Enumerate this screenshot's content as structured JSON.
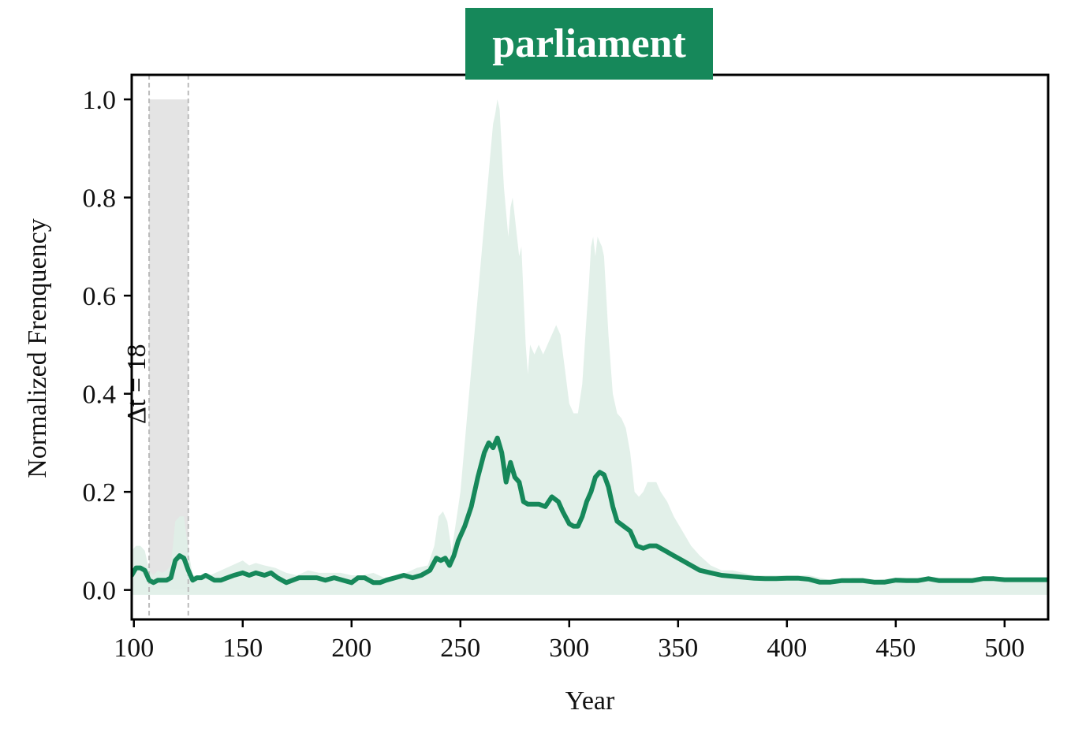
{
  "chart_data": {
    "type": "area",
    "title": "parliament",
    "xlabel": "Year",
    "ylabel": "Normalized Frenquency",
    "xlim": [
      99,
      520
    ],
    "ylim": [
      -0.06,
      1.05
    ],
    "xticks": [
      100,
      150,
      200,
      250,
      300,
      350,
      400,
      450,
      500
    ],
    "yticks": [
      0.0,
      0.2,
      0.4,
      0.6,
      0.8,
      1.0
    ],
    "ytick_labels": [
      "0.0",
      "0.2",
      "0.4",
      "0.6",
      "0.8",
      "1.0"
    ],
    "grid": false,
    "colors": {
      "line": "#16885a",
      "band": "#dfeee7",
      "title_bg": "#16885a",
      "title_text": "#ffffff",
      "highlight": "#e4e4e4",
      "guide": "#bbbbbb"
    },
    "highlight_region": {
      "x_start": 107,
      "x_end": 125,
      "label": "Δt = 18"
    },
    "series": [
      {
        "type": "line",
        "x": [
          99,
          101,
          103,
          105,
          107,
          109,
          111,
          113,
          115,
          117,
          119,
          121,
          123,
          125,
          127,
          129,
          131,
          133,
          135,
          137,
          140,
          143,
          146,
          150,
          153,
          156,
          160,
          163,
          166,
          170,
          173,
          176,
          180,
          184,
          188,
          192,
          196,
          200,
          203,
          206,
          210,
          213,
          216,
          220,
          224,
          228,
          232,
          236,
          239,
          241,
          243,
          245,
          247,
          249,
          252,
          255,
          258,
          261,
          263,
          265,
          267,
          269,
          271,
          273,
          275,
          277,
          279,
          281,
          283,
          286,
          289,
          292,
          295,
          297,
          300,
          302,
          304,
          306,
          308,
          310,
          312,
          314,
          316,
          318,
          320,
          322,
          325,
          328,
          331,
          334,
          337,
          340,
          344,
          348,
          352,
          356,
          360,
          365,
          370,
          375,
          380,
          385,
          390,
          395,
          400,
          405,
          410,
          415,
          420,
          425,
          430,
          435,
          440,
          445,
          450,
          455,
          460,
          465,
          470,
          475,
          480,
          485,
          490,
          495,
          500,
          505,
          510,
          515,
          520
        ],
        "y": [
          0.03,
          0.045,
          0.045,
          0.04,
          0.02,
          0.015,
          0.02,
          0.02,
          0.02,
          0.025,
          0.06,
          0.07,
          0.065,
          0.04,
          0.02,
          0.025,
          0.025,
          0.03,
          0.025,
          0.02,
          0.02,
          0.025,
          0.03,
          0.035,
          0.03,
          0.035,
          0.03,
          0.035,
          0.025,
          0.015,
          0.02,
          0.025,
          0.025,
          0.025,
          0.02,
          0.025,
          0.02,
          0.015,
          0.025,
          0.025,
          0.015,
          0.015,
          0.02,
          0.025,
          0.03,
          0.025,
          0.03,
          0.04,
          0.065,
          0.06,
          0.065,
          0.05,
          0.07,
          0.1,
          0.13,
          0.17,
          0.23,
          0.28,
          0.3,
          0.29,
          0.31,
          0.28,
          0.22,
          0.26,
          0.23,
          0.22,
          0.18,
          0.175,
          0.175,
          0.175,
          0.17,
          0.19,
          0.18,
          0.16,
          0.135,
          0.13,
          0.13,
          0.15,
          0.18,
          0.2,
          0.23,
          0.24,
          0.235,
          0.21,
          0.17,
          0.14,
          0.13,
          0.12,
          0.09,
          0.085,
          0.09,
          0.09,
          0.08,
          0.07,
          0.06,
          0.05,
          0.04,
          0.035,
          0.03,
          0.028,
          0.026,
          0.024,
          0.023,
          0.023,
          0.024,
          0.024,
          0.022,
          0.016,
          0.016,
          0.019,
          0.019,
          0.019,
          0.016,
          0.016,
          0.02,
          0.019,
          0.019,
          0.023,
          0.019,
          0.019,
          0.019,
          0.019,
          0.023,
          0.023,
          0.021,
          0.021,
          0.021,
          0.021,
          0.021
        ]
      },
      {
        "type": "band",
        "x": [
          99,
          101,
          103,
          105,
          107,
          109,
          111,
          113,
          115,
          117,
          119,
          121,
          123,
          125,
          127,
          130,
          135,
          140,
          145,
          150,
          153,
          156,
          160,
          165,
          170,
          175,
          180,
          185,
          190,
          195,
          200,
          205,
          210,
          215,
          220,
          225,
          230,
          235,
          238,
          240,
          242,
          244,
          246,
          248,
          250,
          252,
          254,
          256,
          258,
          260,
          262,
          263,
          264,
          265,
          266,
          267,
          268,
          269,
          270,
          272,
          273,
          274,
          275,
          276,
          277,
          278,
          279,
          280,
          281,
          282,
          284,
          286,
          288,
          290,
          292,
          294,
          296,
          298,
          300,
          302,
          304,
          306,
          308,
          309,
          310,
          311,
          312,
          313,
          314,
          315,
          316,
          317,
          318,
          320,
          322,
          324,
          326,
          328,
          330,
          332,
          334,
          336,
          338,
          340,
          342,
          345,
          348,
          352,
          356,
          360,
          365,
          370,
          375,
          380,
          385,
          390,
          395,
          400,
          405,
          410,
          415,
          420,
          425,
          430,
          435,
          440,
          450,
          460,
          470,
          480,
          490,
          500,
          510,
          520
        ],
        "upper": [
          0.08,
          0.09,
          0.09,
          0.08,
          0.04,
          0.03,
          0.04,
          0.035,
          0.04,
          0.05,
          0.14,
          0.15,
          0.15,
          0.08,
          0.03,
          0.03,
          0.03,
          0.04,
          0.05,
          0.06,
          0.05,
          0.055,
          0.05,
          0.045,
          0.035,
          0.03,
          0.04,
          0.035,
          0.035,
          0.035,
          0.03,
          0.03,
          0.035,
          0.025,
          0.03,
          0.035,
          0.045,
          0.05,
          0.09,
          0.15,
          0.16,
          0.14,
          0.08,
          0.14,
          0.2,
          0.3,
          0.4,
          0.5,
          0.6,
          0.7,
          0.8,
          0.85,
          0.9,
          0.95,
          0.97,
          1.0,
          0.98,
          0.9,
          0.82,
          0.72,
          0.78,
          0.8,
          0.76,
          0.72,
          0.68,
          0.7,
          0.6,
          0.5,
          0.44,
          0.5,
          0.48,
          0.5,
          0.48,
          0.5,
          0.52,
          0.54,
          0.52,
          0.45,
          0.38,
          0.36,
          0.36,
          0.42,
          0.56,
          0.62,
          0.7,
          0.72,
          0.68,
          0.72,
          0.71,
          0.7,
          0.68,
          0.6,
          0.52,
          0.4,
          0.36,
          0.35,
          0.33,
          0.28,
          0.2,
          0.19,
          0.2,
          0.22,
          0.22,
          0.22,
          0.2,
          0.18,
          0.15,
          0.12,
          0.09,
          0.07,
          0.05,
          0.04,
          0.04,
          0.035,
          0.03,
          0.03,
          0.03,
          0.03,
          0.03,
          0.03,
          0.025,
          0.02,
          0.02,
          0.025,
          0.025,
          0.02,
          0.025,
          0.025,
          0.025,
          0.025,
          0.025,
          0.025,
          0.025,
          0.025
        ],
        "lower": [
          -0.01,
          -0.01,
          -0.01,
          -0.01,
          -0.01,
          -0.01,
          -0.01,
          -0.01,
          -0.01,
          -0.01,
          -0.01,
          -0.01,
          -0.01,
          -0.01,
          -0.01,
          -0.01,
          -0.01,
          -0.01,
          -0.01,
          -0.01,
          -0.01,
          -0.01,
          -0.01,
          -0.01,
          -0.01,
          -0.01,
          -0.01,
          -0.01,
          -0.01,
          -0.01,
          -0.01,
          -0.01,
          -0.01,
          -0.01,
          -0.01,
          -0.01,
          -0.01,
          -0.01,
          -0.01,
          -0.01,
          -0.01,
          -0.01,
          -0.01,
          -0.01,
          -0.01,
          -0.01,
          -0.01,
          -0.01,
          -0.01,
          -0.01,
          -0.01,
          -0.01,
          -0.01,
          -0.01,
          -0.01,
          -0.01,
          -0.01,
          -0.01,
          -0.01,
          -0.01,
          -0.01,
          -0.01,
          -0.01,
          -0.01,
          -0.01,
          -0.01,
          -0.01,
          -0.01,
          -0.01,
          -0.01,
          -0.01,
          -0.01,
          -0.01,
          -0.01,
          -0.01,
          -0.01,
          -0.01,
          -0.01,
          -0.01,
          -0.01,
          -0.01,
          -0.01,
          -0.01,
          -0.01,
          -0.01,
          -0.01,
          -0.01,
          -0.01,
          -0.01,
          -0.01,
          -0.01,
          -0.01,
          -0.01,
          -0.01,
          -0.01,
          -0.01,
          -0.01,
          -0.01,
          -0.01,
          -0.01,
          -0.01,
          -0.01,
          -0.01,
          -0.01,
          -0.01,
          -0.01,
          -0.01,
          -0.01,
          -0.01,
          -0.01,
          -0.01,
          -0.01,
          -0.01,
          -0.01,
          -0.01,
          -0.01,
          -0.01,
          -0.01,
          -0.01,
          -0.01,
          -0.01,
          -0.01,
          -0.01,
          -0.01,
          -0.01,
          -0.01,
          -0.01,
          -0.01,
          -0.01,
          -0.01,
          -0.01,
          -0.01,
          -0.01,
          -0.01
        ]
      }
    ]
  }
}
